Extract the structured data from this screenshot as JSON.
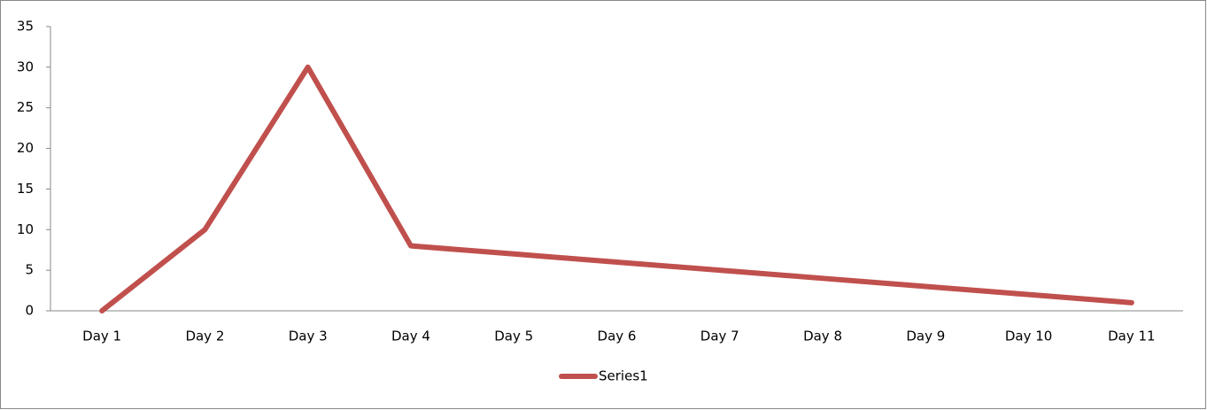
{
  "chart_data": {
    "type": "line",
    "categories": [
      "Day 1",
      "Day 2",
      "Day 3",
      "Day 4",
      "Day 5",
      "Day 6",
      "Day 7",
      "Day 8",
      "Day 9",
      "Day 10",
      "Day 11"
    ],
    "series": [
      {
        "name": "Series1",
        "color": "#c0504d",
        "values": [
          0,
          10,
          30,
          8,
          7,
          6,
          5,
          4,
          3,
          2,
          1
        ]
      }
    ],
    "ylim": [
      0,
      35
    ],
    "yticks": [
      0,
      5,
      10,
      15,
      20,
      25,
      30,
      35
    ],
    "grid": false,
    "legend": "bottom"
  }
}
